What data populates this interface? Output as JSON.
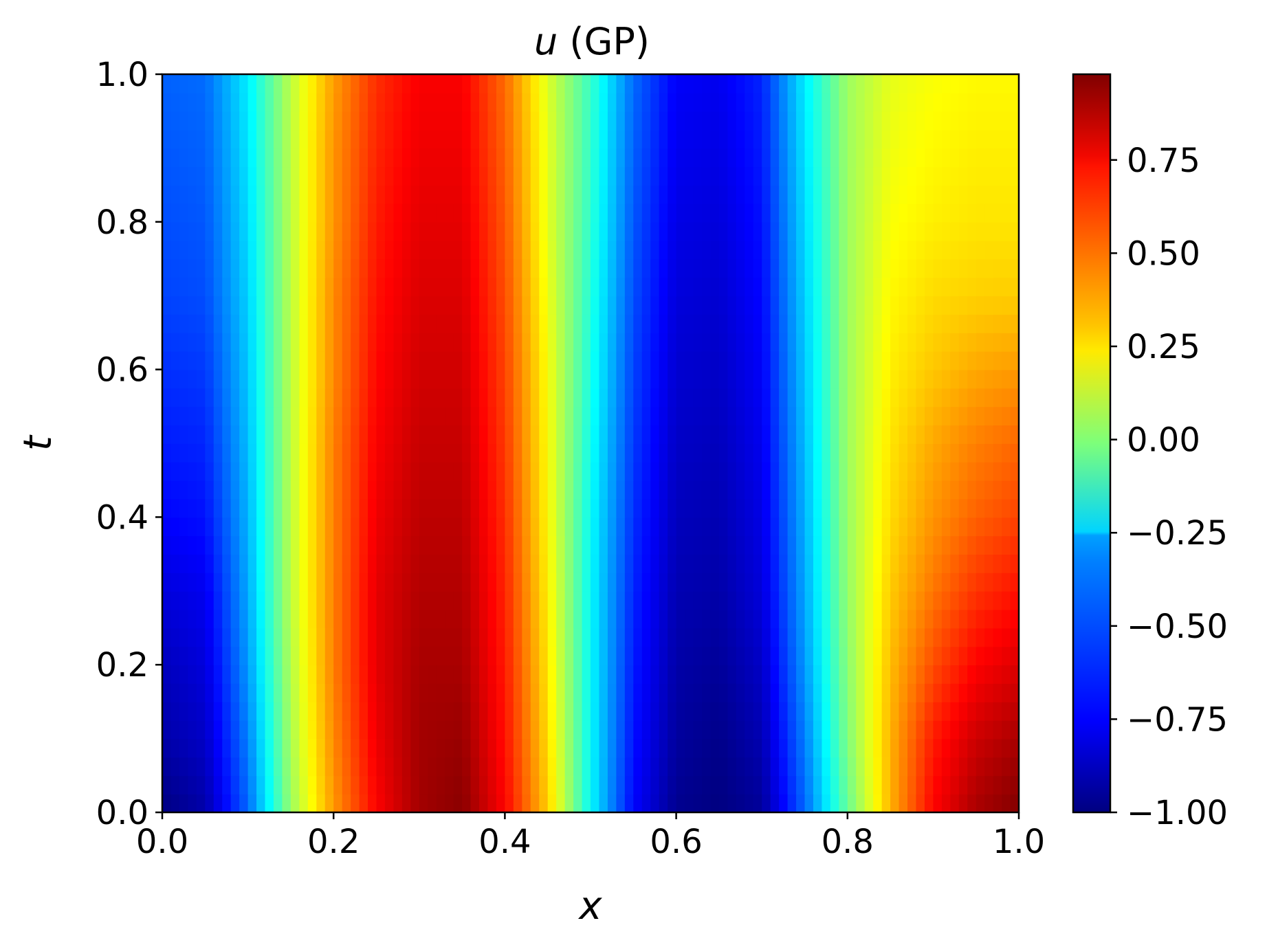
{
  "chart_data": {
    "type": "heatmap",
    "title_var": "u",
    "title_suffix": " (GP)",
    "xlabel": "x",
    "ylabel": "t",
    "xlim": [
      0.0,
      1.0
    ],
    "ylim": [
      0.0,
      1.0
    ],
    "x_ticks": [
      "0.0",
      "0.2",
      "0.4",
      "0.6",
      "0.8",
      "1.0"
    ],
    "y_ticks": [
      "0.0",
      "0.2",
      "0.4",
      "0.6",
      "0.8",
      "1.0"
    ],
    "colormap": "jet",
    "colorbar": {
      "vmin": -1.0,
      "vmax": 1.0,
      "ticks": [
        {
          "value": -1.0,
          "label": "−1.00"
        },
        {
          "value": -0.75,
          "label": "−0.75"
        },
        {
          "value": -0.5,
          "label": "−0.50"
        },
        {
          "value": -0.25,
          "label": "−0.25"
        },
        {
          "value": 0.0,
          "label": "0.00"
        },
        {
          "value": 0.25,
          "label": "0.25"
        },
        {
          "value": 0.5,
          "label": "0.50"
        },
        {
          "value": 0.75,
          "label": "0.75"
        }
      ]
    },
    "field": {
      "description_of_values": "u(x,t) field values sampled on a grid; rows are t from 0.0 to 1.0, columns are x from 0.0 to 1.0",
      "x": [
        0.0,
        0.05,
        0.1,
        0.15,
        0.2,
        0.25,
        0.3,
        0.35,
        0.4,
        0.45,
        0.5,
        0.55,
        0.6,
        0.65,
        0.7,
        0.75,
        0.8,
        0.85,
        0.9,
        0.95,
        1.0
      ],
      "t": [
        0.0,
        0.1,
        0.2,
        0.3,
        0.4,
        0.5,
        0.6,
        0.7,
        0.8,
        0.9,
        1.0
      ],
      "values": [
        [
          -1.0,
          -0.92,
          -0.55,
          0.05,
          0.45,
          0.75,
          0.93,
          0.98,
          0.75,
          0.35,
          -0.25,
          -0.75,
          -0.97,
          -1.0,
          -0.95,
          -0.55,
          -0.05,
          0.4,
          0.75,
          0.92,
          1.0
        ],
        [
          -0.92,
          -0.86,
          -0.5,
          0.08,
          0.48,
          0.78,
          0.93,
          0.95,
          0.72,
          0.32,
          -0.25,
          -0.72,
          -0.94,
          -0.98,
          -0.9,
          -0.5,
          0.0,
          0.4,
          0.7,
          0.85,
          0.92
        ],
        [
          -0.88,
          -0.82,
          -0.45,
          0.1,
          0.5,
          0.8,
          0.92,
          0.92,
          0.7,
          0.3,
          -0.25,
          -0.7,
          -0.92,
          -0.95,
          -0.86,
          -0.45,
          0.02,
          0.38,
          0.6,
          0.75,
          0.82
        ],
        [
          -0.82,
          -0.78,
          -0.42,
          0.12,
          0.5,
          0.8,
          0.9,
          0.9,
          0.68,
          0.28,
          -0.25,
          -0.68,
          -0.9,
          -0.92,
          -0.82,
          -0.42,
          0.04,
          0.35,
          0.52,
          0.65,
          0.72
        ],
        [
          -0.75,
          -0.72,
          -0.4,
          0.12,
          0.5,
          0.78,
          0.88,
          0.88,
          0.66,
          0.26,
          -0.24,
          -0.66,
          -0.88,
          -0.9,
          -0.8,
          -0.4,
          0.05,
          0.32,
          0.46,
          0.56,
          0.62
        ],
        [
          -0.7,
          -0.68,
          -0.38,
          0.12,
          0.5,
          0.76,
          0.86,
          0.86,
          0.64,
          0.25,
          -0.22,
          -0.64,
          -0.86,
          -0.88,
          -0.78,
          -0.38,
          0.06,
          0.3,
          0.42,
          0.5,
          0.55
        ],
        [
          -0.66,
          -0.64,
          -0.36,
          0.12,
          0.48,
          0.74,
          0.84,
          0.84,
          0.62,
          0.24,
          -0.2,
          -0.62,
          -0.84,
          -0.86,
          -0.76,
          -0.36,
          0.06,
          0.28,
          0.36,
          0.42,
          0.45
        ],
        [
          -0.62,
          -0.6,
          -0.34,
          0.12,
          0.48,
          0.72,
          0.82,
          0.82,
          0.6,
          0.22,
          -0.18,
          -0.6,
          -0.82,
          -0.84,
          -0.74,
          -0.34,
          0.06,
          0.26,
          0.32,
          0.34,
          0.35
        ],
        [
          -0.6,
          -0.58,
          -0.32,
          0.12,
          0.46,
          0.7,
          0.8,
          0.8,
          0.58,
          0.2,
          -0.16,
          -0.58,
          -0.8,
          -0.82,
          -0.72,
          -0.32,
          0.06,
          0.24,
          0.28,
          0.3,
          0.3
        ],
        [
          -0.58,
          -0.56,
          -0.3,
          0.12,
          0.46,
          0.68,
          0.78,
          0.78,
          0.56,
          0.2,
          -0.15,
          -0.56,
          -0.78,
          -0.8,
          -0.7,
          -0.3,
          0.06,
          0.22,
          0.26,
          0.28,
          0.28
        ],
        [
          -0.56,
          -0.54,
          -0.28,
          0.12,
          0.44,
          0.66,
          0.76,
          0.76,
          0.54,
          0.18,
          -0.14,
          -0.54,
          -0.76,
          -0.78,
          -0.68,
          -0.28,
          0.06,
          0.2,
          0.24,
          0.26,
          0.26
        ]
      ]
    }
  }
}
